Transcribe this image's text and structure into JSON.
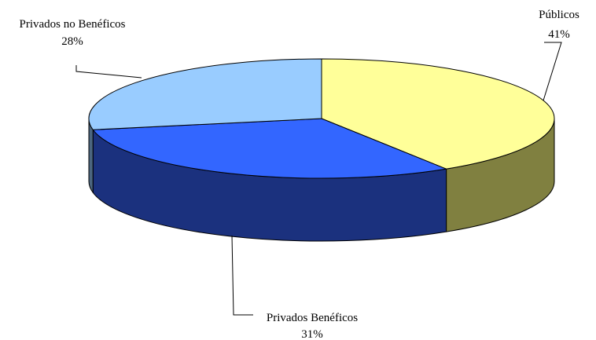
{
  "chart_data": {
    "type": "pie",
    "three_d": true,
    "legend": "none",
    "slices": [
      {
        "label": "Públicos",
        "percent_label": "41%",
        "value": 41,
        "top_color": "#FFFF99",
        "side_color": "#808040"
      },
      {
        "label": "Privados Benéficos",
        "percent_label": "31%",
        "value": 31,
        "top_color": "#3366FF",
        "side_color": "#1B317E"
      },
      {
        "label": "Privados no Benéficos",
        "percent_label": "28%",
        "value": 28,
        "top_color": "#99CCFF",
        "side_color": "#4C6680"
      }
    ]
  }
}
